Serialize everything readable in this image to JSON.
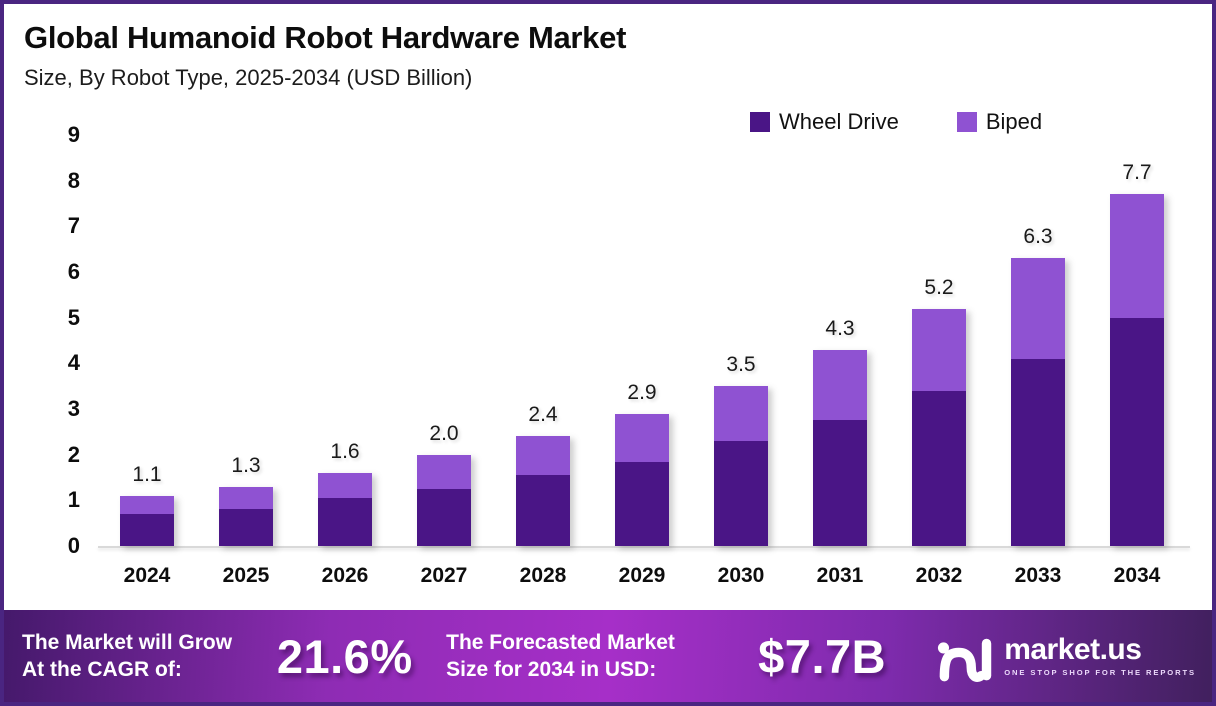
{
  "header": {
    "title": "Global Humanoid Robot Hardware Market",
    "subtitle": "Size, By Robot Type, 2025-2034 (USD Billion)"
  },
  "colors": {
    "wheel_drive": "#4A1586",
    "biped": "#8F52D2",
    "frame_border": "#4A2581",
    "axis_line": "#D9D9D9",
    "banner_gradient_mid": "#A62FC8"
  },
  "chart_data": {
    "type": "bar",
    "stacked": true,
    "title": "Global Humanoid Robot Hardware Market Size, By Robot Type, 2025-2034 (USD Billion)",
    "xlabel": "",
    "ylabel": "",
    "ylim": [
      0,
      9
    ],
    "yticks": [
      0,
      1,
      2,
      3,
      4,
      5,
      6,
      7,
      8,
      9
    ],
    "grid": false,
    "legend_position": "top-right",
    "categories": [
      "2024",
      "2025",
      "2026",
      "2027",
      "2028",
      "2029",
      "2030",
      "2031",
      "2032",
      "2033",
      "2034"
    ],
    "series": [
      {
        "name": "Wheel Drive",
        "color": "#4A1586",
        "values": [
          0.7,
          0.8,
          1.05,
          1.25,
          1.55,
          1.85,
          2.3,
          2.75,
          3.4,
          4.1,
          5.0
        ]
      },
      {
        "name": "Biped",
        "color": "#8F52D2",
        "values": [
          0.4,
          0.5,
          0.55,
          0.75,
          0.85,
          1.05,
          1.2,
          1.55,
          1.8,
          2.2,
          2.7
        ]
      }
    ],
    "totals": [
      1.1,
      1.3,
      1.6,
      2.0,
      2.4,
      2.9,
      3.5,
      4.3,
      5.2,
      6.3,
      7.7
    ],
    "total_labels": [
      "1.1",
      "1.3",
      "1.6",
      "2.0",
      "2.4",
      "2.9",
      "3.5",
      "4.3",
      "5.2",
      "6.3",
      "7.7"
    ]
  },
  "banner": {
    "cagr_label_line1": "The Market will Grow",
    "cagr_label_line2": "At the CAGR of:",
    "cagr_value": "21.6%",
    "forecast_label_line1": "The Forecasted Market",
    "forecast_label_line2": "Size for 2034 in USD:",
    "forecast_value": "$7.7B",
    "logo": {
      "name": "market.us",
      "tagline": "ONE STOP SHOP FOR THE REPORTS"
    }
  }
}
